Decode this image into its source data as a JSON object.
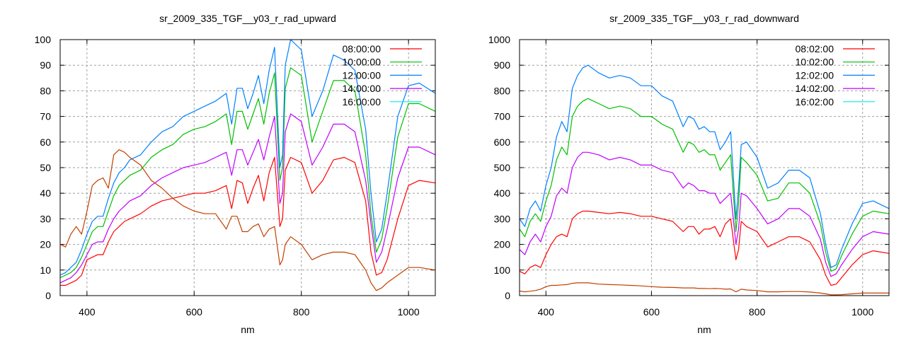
{
  "chart_data": [
    {
      "type": "line",
      "title": "sr_2009_335_TGF__y03_r_rad_upward",
      "xlabel": "nm",
      "ylabel": "",
      "xlim": [
        350,
        1050
      ],
      "ylim": [
        0,
        100
      ],
      "xticks": [
        400,
        600,
        800,
        1000
      ],
      "yticks": [
        0,
        10,
        20,
        30,
        40,
        50,
        60,
        70,
        80,
        90,
        100
      ],
      "grid": true,
      "legend_position": "top-right",
      "x": [
        350,
        360,
        370,
        380,
        390,
        400,
        410,
        420,
        430,
        440,
        450,
        460,
        470,
        480,
        500,
        520,
        540,
        560,
        580,
        600,
        620,
        640,
        660,
        670,
        680,
        690,
        700,
        710,
        720,
        730,
        740,
        750,
        760,
        765,
        770,
        780,
        800,
        820,
        840,
        860,
        880,
        900,
        920,
        930,
        940,
        950,
        960,
        980,
        1000,
        1020,
        1050
      ],
      "series": [
        {
          "name": "08:00:00",
          "legend_color": "#ff0000",
          "line_color": "#ff0000",
          "values": [
            4,
            4,
            5,
            6,
            8,
            14,
            15,
            16,
            16,
            21,
            25,
            27,
            29,
            30,
            32,
            35,
            37,
            38,
            39,
            40,
            40,
            41,
            43,
            34,
            45,
            44,
            36,
            42,
            47,
            37,
            48,
            54,
            27,
            30,
            49,
            54,
            52,
            40,
            45,
            53,
            54,
            52,
            37,
            17,
            8,
            9,
            14,
            30,
            43,
            45,
            44
          ]
        },
        {
          "name": "10:00:00",
          "legend_color": "#00c000",
          "line_color": "#00c000",
          "values": [
            7,
            8,
            9,
            11,
            15,
            20,
            25,
            27,
            27,
            33,
            39,
            43,
            45,
            47,
            49,
            54,
            57,
            59,
            63,
            65,
            66,
            68,
            71,
            59,
            72,
            72,
            65,
            71,
            77,
            67,
            79,
            87,
            45,
            50,
            81,
            89,
            86,
            60,
            72,
            84,
            84,
            80,
            55,
            32,
            17,
            22,
            34,
            62,
            75,
            75,
            72
          ]
        },
        {
          "name": "12:00:00",
          "legend_color": "#0080ff",
          "line_color": "#0080ff",
          "values": [
            8,
            9,
            11,
            13,
            18,
            24,
            29,
            31,
            31,
            38,
            44,
            48,
            50,
            53,
            55,
            60,
            64,
            66,
            70,
            72,
            74,
            76,
            79,
            67,
            81,
            81,
            73,
            79,
            86,
            75,
            88,
            97,
            50,
            55,
            90,
            100,
            96,
            70,
            80,
            94,
            92,
            88,
            65,
            40,
            21,
            26,
            40,
            70,
            82,
            83,
            79
          ]
        },
        {
          "name": "14:00:00",
          "legend_color": "#c000ff",
          "line_color": "#c000ff",
          "values": [
            5,
            6,
            7,
            9,
            12,
            16,
            20,
            21,
            21,
            26,
            30,
            33,
            35,
            37,
            39,
            43,
            46,
            48,
            50,
            51,
            52,
            54,
            56,
            47,
            57,
            57,
            51,
            56,
            61,
            53,
            62,
            70,
            36,
            40,
            64,
            71,
            68,
            51,
            58,
            67,
            67,
            64,
            45,
            28,
            13,
            17,
            26,
            46,
            58,
            58,
            55
          ]
        },
        {
          "name": "16:00:00",
          "legend_color": "#00eeee",
          "line_color": "#c04000",
          "values": [
            20,
            19,
            24,
            27,
            24,
            33,
            43,
            45,
            46,
            42,
            55,
            57,
            56,
            54,
            51,
            45,
            42,
            38,
            35,
            33,
            32,
            32,
            26,
            31,
            31,
            25,
            25,
            27,
            28,
            23,
            26,
            27,
            12,
            14,
            20,
            23,
            20,
            14,
            16,
            17,
            17,
            16,
            10,
            5,
            2,
            3,
            5,
            8,
            11,
            11,
            10
          ]
        }
      ]
    },
    {
      "type": "line",
      "title": "sr_2009_335_TGF__y03_r_rad_downward",
      "xlabel": "nm",
      "ylabel": "",
      "xlim": [
        350,
        1050
      ],
      "ylim": [
        0,
        1000
      ],
      "xticks": [
        400,
        600,
        800,
        1000
      ],
      "yticks": [
        0,
        100,
        200,
        300,
        400,
        500,
        600,
        700,
        800,
        900,
        1000
      ],
      "grid": true,
      "legend_position": "top-right",
      "x": [
        350,
        360,
        370,
        380,
        390,
        400,
        410,
        420,
        430,
        440,
        450,
        460,
        470,
        480,
        500,
        520,
        540,
        560,
        580,
        600,
        620,
        640,
        660,
        670,
        680,
        690,
        700,
        710,
        720,
        730,
        740,
        750,
        760,
        765,
        770,
        780,
        800,
        820,
        840,
        860,
        880,
        900,
        920,
        930,
        940,
        950,
        960,
        980,
        1000,
        1020,
        1050
      ],
      "series": [
        {
          "name": "08:02:00",
          "legend_color": "#ff0000",
          "line_color": "#ff0000",
          "values": [
            95,
            85,
            110,
            120,
            110,
            160,
            200,
            230,
            240,
            230,
            300,
            320,
            330,
            330,
            325,
            320,
            325,
            320,
            310,
            310,
            300,
            290,
            250,
            270,
            270,
            240,
            260,
            260,
            270,
            230,
            280,
            300,
            140,
            180,
            290,
            270,
            250,
            190,
            210,
            230,
            230,
            210,
            140,
            80,
            40,
            45,
            70,
            120,
            160,
            175,
            165
          ]
        },
        {
          "name": "10:02:00",
          "legend_color": "#00c000",
          "line_color": "#00c000",
          "values": [
            260,
            230,
            290,
            320,
            290,
            370,
            430,
            530,
            580,
            550,
            700,
            740,
            760,
            770,
            750,
            730,
            740,
            730,
            700,
            700,
            670,
            650,
            560,
            600,
            590,
            560,
            570,
            550,
            550,
            490,
            520,
            550,
            250,
            360,
            540,
            520,
            470,
            370,
            380,
            440,
            440,
            400,
            280,
            170,
            95,
            105,
            155,
            240,
            310,
            330,
            320
          ]
        },
        {
          "name": "12:02:00",
          "legend_color": "#0080ff",
          "line_color": "#0080ff",
          "values": [
            300,
            270,
            340,
            370,
            330,
            430,
            500,
            620,
            680,
            640,
            810,
            860,
            890,
            900,
            870,
            850,
            860,
            850,
            820,
            820,
            780,
            760,
            660,
            700,
            690,
            650,
            660,
            640,
            640,
            570,
            600,
            640,
            300,
            420,
            590,
            600,
            540,
            420,
            440,
            490,
            490,
            460,
            320,
            200,
            110,
            120,
            180,
            280,
            360,
            370,
            340
          ]
        },
        {
          "name": "14:02:00",
          "legend_color": "#c000ff",
          "line_color": "#c000ff",
          "values": [
            180,
            160,
            210,
            240,
            210,
            270,
            310,
            390,
            420,
            400,
            500,
            540,
            560,
            560,
            550,
            530,
            540,
            530,
            510,
            510,
            490,
            480,
            420,
            440,
            430,
            410,
            410,
            400,
            400,
            360,
            380,
            400,
            200,
            260,
            400,
            390,
            340,
            280,
            300,
            340,
            340,
            310,
            220,
            130,
            75,
            85,
            120,
            180,
            230,
            250,
            240
          ]
        },
        {
          "name": "16:02:00",
          "legend_color": "#00eeee",
          "line_color": "#c04000",
          "values": [
            18,
            15,
            17,
            20,
            25,
            35,
            40,
            40,
            42,
            43,
            48,
            50,
            50,
            50,
            45,
            43,
            42,
            40,
            38,
            35,
            33,
            32,
            30,
            30,
            30,
            28,
            28,
            27,
            28,
            27,
            25,
            26,
            15,
            20,
            25,
            22,
            20,
            15,
            15,
            16,
            16,
            14,
            10,
            7,
            3,
            3,
            4,
            7,
            10,
            10,
            10
          ]
        }
      ]
    }
  ]
}
